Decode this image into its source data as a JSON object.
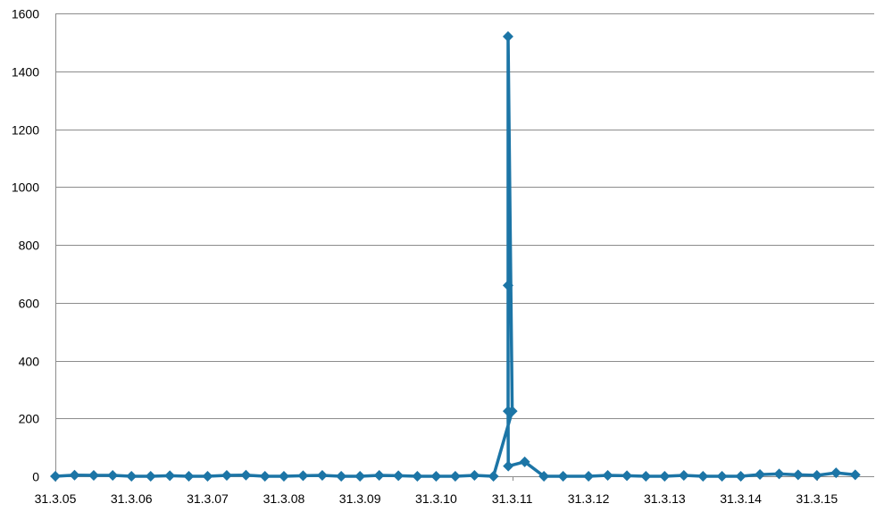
{
  "chart_data": {
    "type": "line",
    "title": "",
    "xlabel": "",
    "ylabel": "",
    "ylim": [
      0,
      1600
    ],
    "y_ticks": [
      "0",
      "200",
      "400",
      "600",
      "800",
      "1000",
      "1200",
      "1400",
      "1600"
    ],
    "x_tick_labels": [
      "31.3.05",
      "31.3.06",
      "31.3.07",
      "31.3.08",
      "31.3.09",
      "31.3.10",
      "31.3.11",
      "31.3.12",
      "31.3.13",
      "31.3.14",
      "31.3.15"
    ],
    "x_range": [
      "31.3.05",
      "end of 2015"
    ],
    "grid": true,
    "legend": "none",
    "series": [
      {
        "color": "#1c75a6",
        "marker": "diamond",
        "points": [
          {
            "x": "31.3.05",
            "y": 0
          },
          {
            "x": "3.05",
            "y": 4
          },
          {
            "x": "6.05",
            "y": 3
          },
          {
            "x": "9.05",
            "y": 3
          },
          {
            "x": "31.3.06",
            "y": 0
          },
          {
            "x": "3.06",
            "y": 0
          },
          {
            "x": "6.06",
            "y": 2
          },
          {
            "x": "9.06",
            "y": 0
          },
          {
            "x": "31.3.07",
            "y": 0
          },
          {
            "x": "3.07",
            "y": 3
          },
          {
            "x": "6.07",
            "y": 4
          },
          {
            "x": "9.07",
            "y": 0
          },
          {
            "x": "31.3.08",
            "y": 0
          },
          {
            "x": "3.08",
            "y": 2
          },
          {
            "x": "6.08",
            "y": 3
          },
          {
            "x": "9.08",
            "y": 0
          },
          {
            "x": "31.3.09",
            "y": 0
          },
          {
            "x": "3.09",
            "y": 3
          },
          {
            "x": "6.09",
            "y": 2
          },
          {
            "x": "9.09",
            "y": 0
          },
          {
            "x": "31.3.10",
            "y": 0
          },
          {
            "x": "3.10",
            "y": 0
          },
          {
            "x": "6.10",
            "y": 3
          },
          {
            "x": "9.10",
            "y": 0
          },
          {
            "x": "31.3.11",
            "y": 225
          },
          {
            "x": "2011-03-11",
            "y": 1520
          },
          {
            "x": "2011-03-11",
            "y": 660
          },
          {
            "x": "2011-03-11",
            "y": 225
          },
          {
            "x": "2011-03-12",
            "y": 35
          },
          {
            "x": "2011-05",
            "y": 50
          },
          {
            "x": "2011-08",
            "y": 0
          },
          {
            "x": "2011-11",
            "y": 0
          },
          {
            "x": "31.3.12",
            "y": 0
          },
          {
            "x": "3.12",
            "y": 3
          },
          {
            "x": "6.12",
            "y": 2
          },
          {
            "x": "9.12",
            "y": 0
          },
          {
            "x": "31.3.13",
            "y": 0
          },
          {
            "x": "3.13",
            "y": 3
          },
          {
            "x": "6.13",
            "y": 0
          },
          {
            "x": "9.13",
            "y": 0
          },
          {
            "x": "31.3.14",
            "y": 0
          },
          {
            "x": "3.14",
            "y": 6
          },
          {
            "x": "6.14",
            "y": 8
          },
          {
            "x": "9.14",
            "y": 5
          },
          {
            "x": "31.3.15",
            "y": 3
          },
          {
            "x": "3.15",
            "y": 12
          },
          {
            "x": "6.15",
            "y": 5
          }
        ]
      }
    ]
  }
}
